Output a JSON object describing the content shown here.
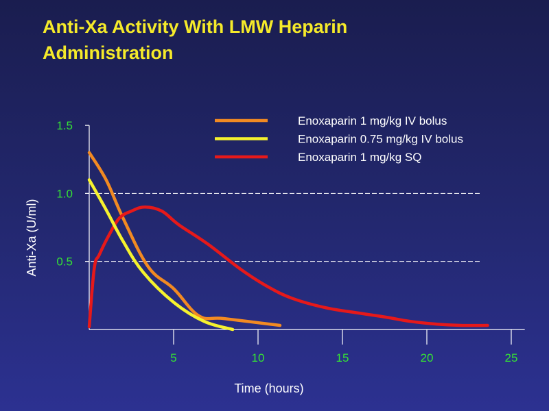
{
  "slide": {
    "title": "Anti-Xa Activity With LMW Heparin Administration"
  },
  "chart_data": {
    "type": "line",
    "title": "Anti-Xa Activity With LMW Heparin Administration",
    "xlabel": "Time (hours)",
    "ylabel": "Anti-Xa (U/ml)",
    "xlim": [
      0,
      25.5
    ],
    "ylim": [
      0,
      1.5
    ],
    "x_ticks": [
      {
        "value": 5,
        "label": "5"
      },
      {
        "value": 10,
        "label": "10"
      },
      {
        "value": 15,
        "label": "15"
      },
      {
        "value": 20,
        "label": "20"
      },
      {
        "value": 25,
        "label": "25"
      }
    ],
    "y_ticks": [
      {
        "value": 0.5,
        "label": "0.5"
      },
      {
        "value": 1.0,
        "label": "1.0"
      },
      {
        "value": 1.5,
        "label": "1.5"
      }
    ],
    "gridlines": {
      "dashed": true,
      "y_values": [
        0.5,
        1.0
      ]
    },
    "legend": {
      "position": "top-right"
    },
    "series": [
      {
        "name": "Enoxaparin 1 mg/kg IV bolus",
        "color": "#f28a22",
        "x": [
          0,
          1,
          2,
          3.5,
          5,
          6.5,
          8,
          11.3
        ],
        "y": [
          1.3,
          1.1,
          0.82,
          0.46,
          0.3,
          0.1,
          0.08,
          0.03
        ]
      },
      {
        "name": "Enoxaparin 0.75 mg/kg IV bolus",
        "color": "#f5f22e",
        "x": [
          0,
          1,
          2,
          3.2,
          5,
          6.8,
          8.5
        ],
        "y": [
          1.1,
          0.88,
          0.65,
          0.42,
          0.2,
          0.06,
          0.0
        ]
      },
      {
        "name": "Enoxaparin 1 mg/kg SQ",
        "color": "#e6191a",
        "x": [
          0,
          0.3,
          0.6,
          1.2,
          1.8,
          2.5,
          3.3,
          4.3,
          5.3,
          7,
          9,
          10.5,
          12,
          14,
          16,
          17.6,
          19,
          20.5,
          22,
          23.6
        ],
        "y": [
          0.02,
          0.45,
          0.55,
          0.7,
          0.82,
          0.87,
          0.9,
          0.87,
          0.77,
          0.63,
          0.44,
          0.32,
          0.23,
          0.16,
          0.12,
          0.09,
          0.06,
          0.04,
          0.03,
          0.03
        ]
      }
    ]
  }
}
